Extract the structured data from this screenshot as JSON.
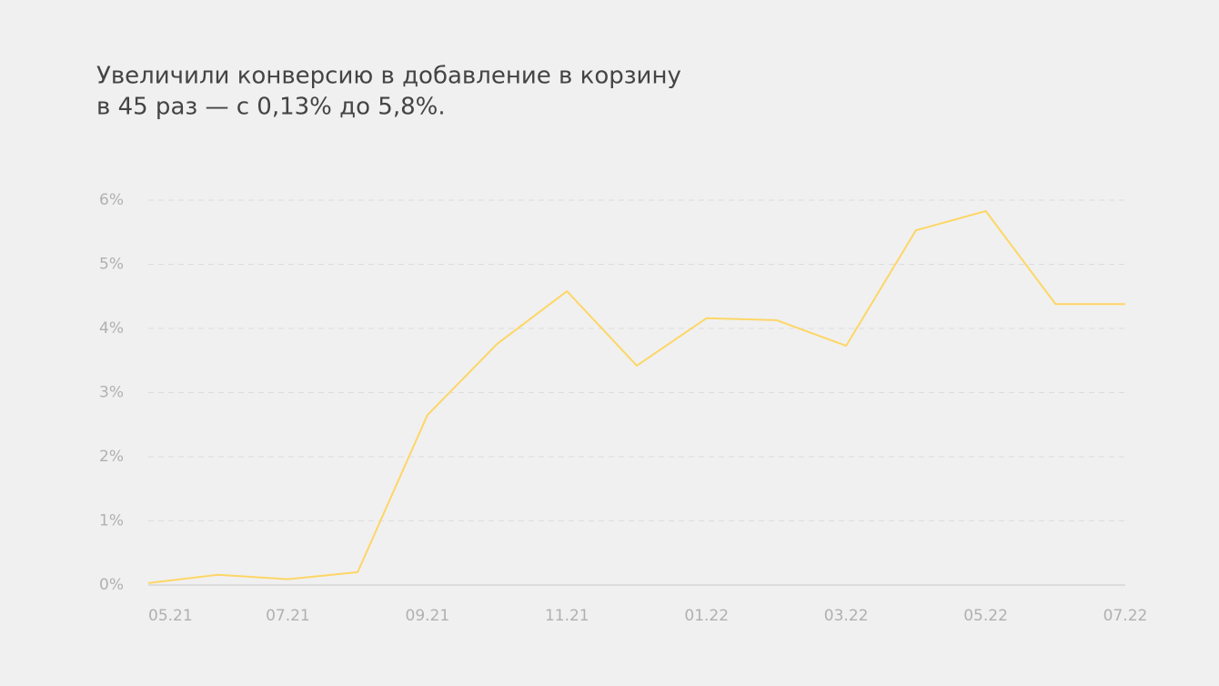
{
  "chart_data": {
    "type": "line",
    "title": [
      "Увеличили конверсию в добавление в корзину",
      "в 45 раз — с 0,13% до 5,8%."
    ],
    "categories": [
      "05.21",
      null,
      "07.21",
      null,
      "09.21",
      null,
      "11.21",
      null,
      "01.22",
      null,
      "03.22",
      null,
      "05.22",
      null,
      "07.22"
    ],
    "series": [
      {
        "color": "#fdd666",
        "values": [
          0.03,
          0.16,
          0.09,
          0.2,
          2.65,
          3.76,
          4.58,
          3.42,
          4.16,
          4.13,
          3.73,
          5.53,
          5.83,
          4.38,
          4.38
        ]
      }
    ],
    "ylim": [
      0,
      6
    ],
    "yticks": [
      {
        "value": 0,
        "label": "0%"
      },
      {
        "value": 1,
        "label": "1%"
      },
      {
        "value": 2,
        "label": "2%"
      },
      {
        "value": 3,
        "label": "3%"
      },
      {
        "value": 4,
        "label": "4%"
      },
      {
        "value": 5,
        "label": "5%"
      },
      {
        "value": 6,
        "label": "6%"
      }
    ],
    "grid": true
  }
}
